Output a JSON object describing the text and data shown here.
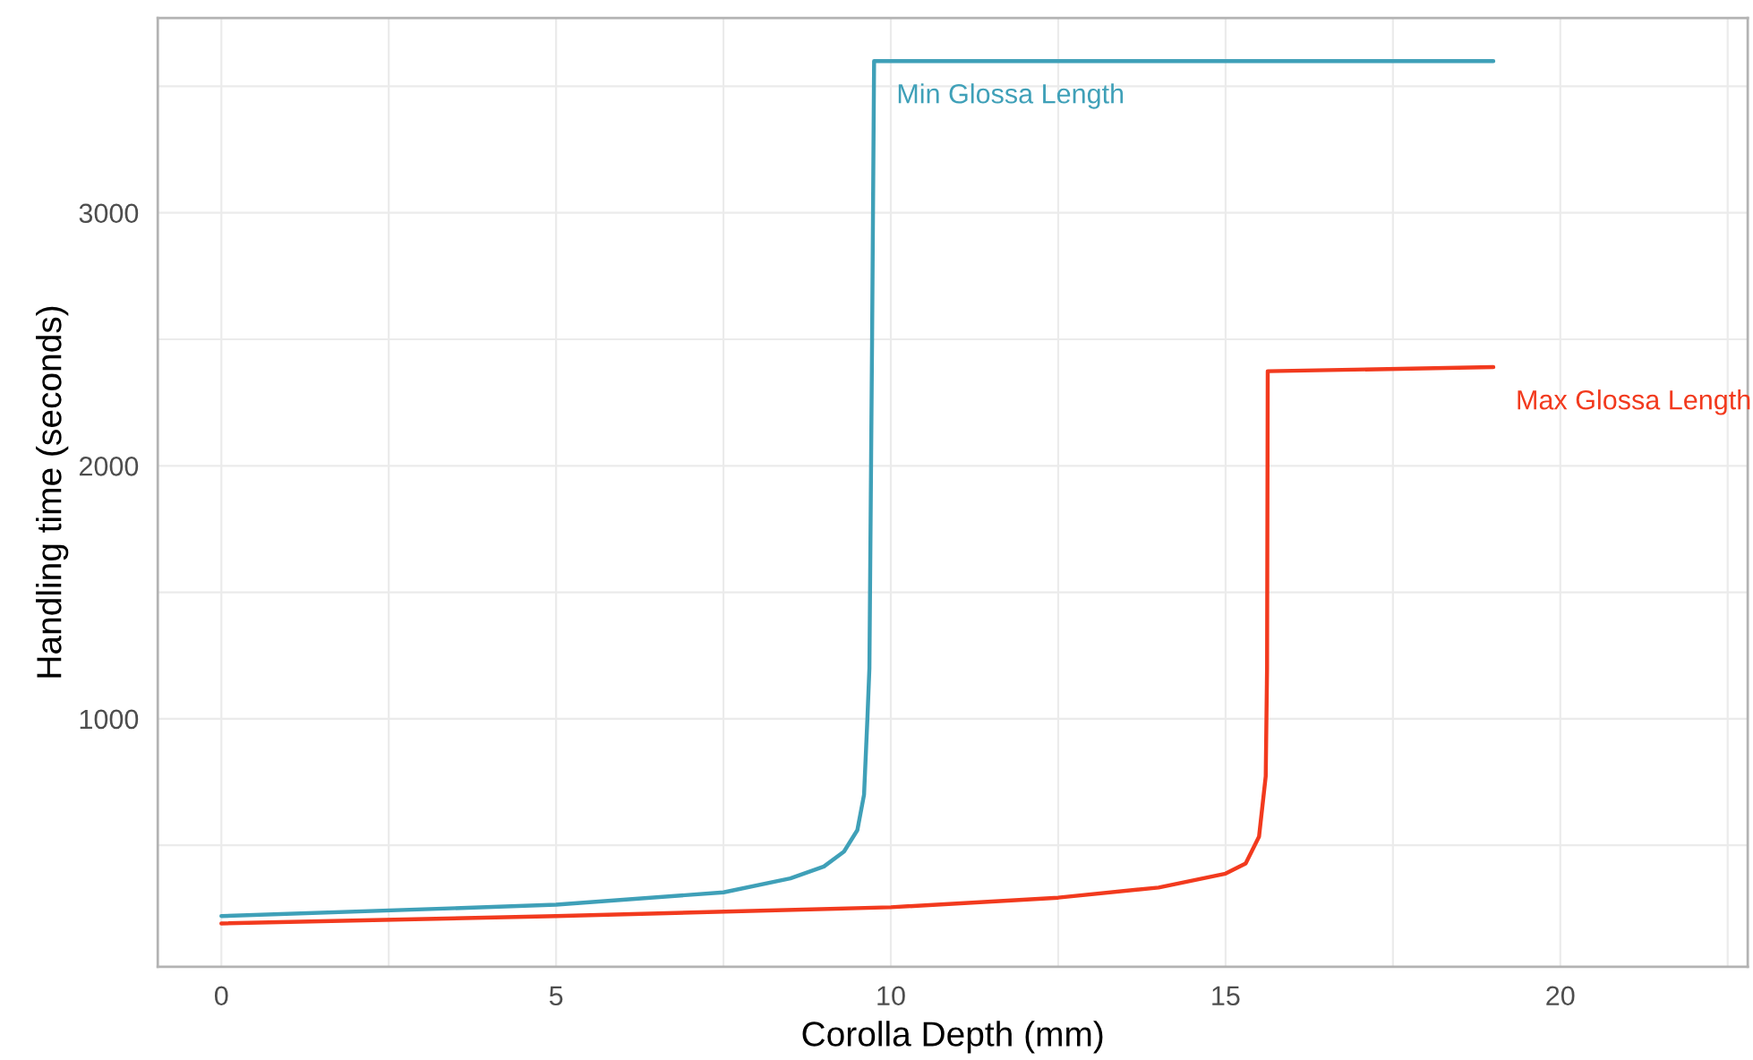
{
  "chart_data": {
    "type": "line",
    "xlabel": "Corolla Depth (mm)",
    "ylabel": "Handling time (seconds)",
    "xlim": [
      -0.95,
      22.8
    ],
    "ylim": [
      20,
      3770
    ],
    "xticks": [
      0,
      {
        "value": 2.5,
        "label": null
      },
      5,
      {
        "value": 7.5,
        "label": null
      },
      10,
      {
        "value": 12.5,
        "label": null
      },
      15,
      {
        "value": 17.5,
        "label": null
      },
      20,
      {
        "value": 22.5,
        "label": null
      }
    ],
    "yticks": [
      {
        "value": 500,
        "label": null
      },
      1000,
      {
        "value": 1500,
        "label": null
      },
      2000,
      {
        "value": 2500,
        "label": null
      },
      3000,
      {
        "value": 3500,
        "label": null
      }
    ],
    "grid": true,
    "legend": false,
    "marker": "none",
    "line_style": "solid",
    "series": [
      {
        "name": "Min Glossa Length",
        "color": "#3fa0b8",
        "x": [
          0,
          5,
          7.5,
          8.5,
          9,
          9.3,
          9.5,
          9.6,
          9.65,
          9.68,
          9.72,
          9.75,
          19
        ],
        "values": [
          220,
          265,
          314,
          369,
          416,
          475,
          560,
          700,
          1000,
          1200,
          2500,
          3600,
          3600
        ]
      },
      {
        "name": "Max Glossa Length",
        "color": "#f23a1e",
        "x": [
          0,
          5,
          10,
          12.5,
          14,
          15,
          15.3,
          15.5,
          15.6,
          15.62,
          15.63,
          19
        ],
        "values": [
          191,
          220,
          255,
          293,
          333,
          388,
          428,
          534,
          773,
          1200,
          2374,
          2390
        ]
      }
    ]
  }
}
